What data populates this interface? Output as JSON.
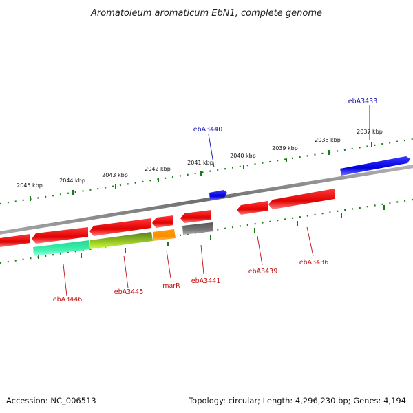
{
  "title": "Aromatoleum aromaticum EbN1, complete genome",
  "footer": {
    "accession": "Accession: NC_006513",
    "topology": "Topology: circular; Length: 4,296,230 bp; Genes: 4,194"
  },
  "colors": {
    "backbone": "#8c8c8c",
    "tick": "#1a7a1a",
    "forward_gene": "#1010e0",
    "reverse_gene": "#e81010",
    "forward_label": "#1010b0",
    "reverse_label": "#c01010"
  },
  "tick_labels": [
    "2045 kbp",
    "2044 kbp",
    "2043 kbp",
    "2042 kbp",
    "2041 kbp",
    "2040 kbp",
    "2039 kbp",
    "2038 kbp",
    "2037 kbp"
  ],
  "gene_labels": {
    "forward": [
      "ebA3440",
      "ebA3433"
    ],
    "reverse": [
      "ebA3446",
      "ebA3445",
      "marR",
      "ebA3441",
      "ebA3439",
      "ebA3436"
    ]
  }
}
